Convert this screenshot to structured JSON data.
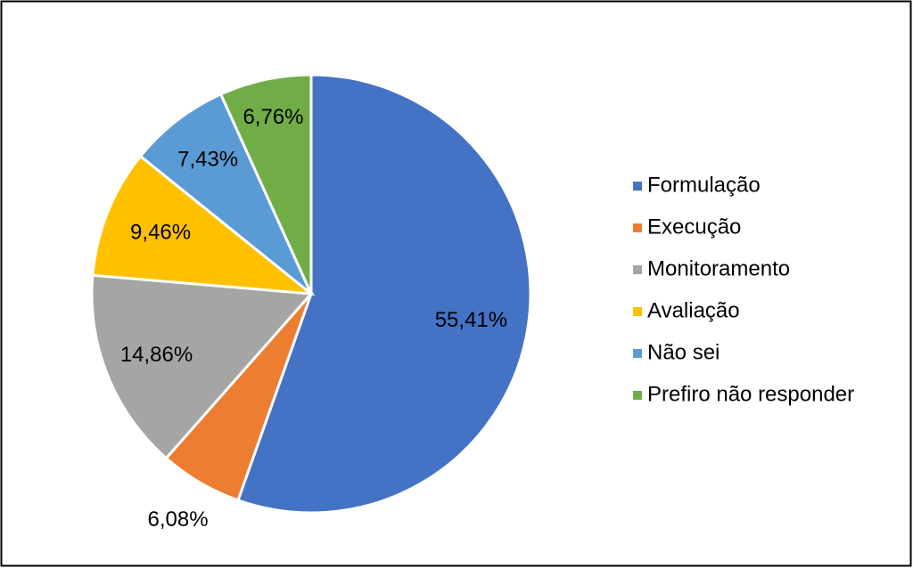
{
  "chart_data": {
    "type": "pie",
    "categories": [
      "Formulação",
      "Execução",
      "Monitoramento",
      "Avaliação",
      "Não sei",
      "Prefiro não responder"
    ],
    "values": [
      55.41,
      6.08,
      14.86,
      9.46,
      7.43,
      6.76
    ],
    "value_labels": [
      "55,41%",
      "6,08%",
      "14,86%",
      "9,46%",
      "7,43%",
      "6,76%"
    ],
    "colors": [
      "#4472c4",
      "#ed7d31",
      "#a5a5a5",
      "#ffc000",
      "#5b9bd5",
      "#70ad47"
    ],
    "legend": "right"
  }
}
